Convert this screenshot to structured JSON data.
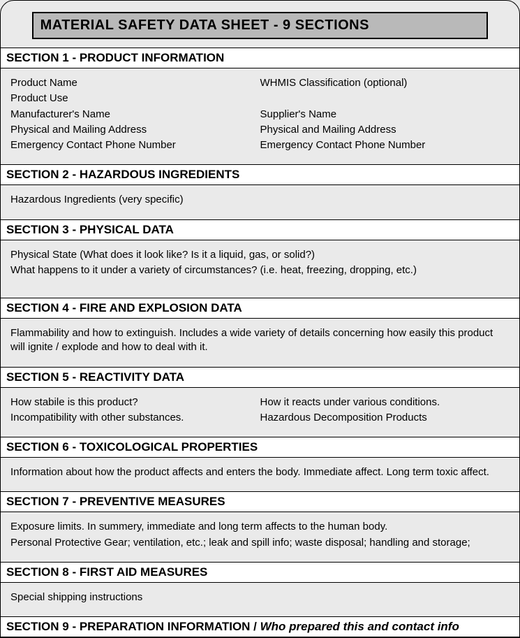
{
  "colors": {
    "page_bg": "#eaeaea",
    "title_bg": "#b9b9b9",
    "header_bg": "#ffffff",
    "border": "#000000",
    "text": "#000000"
  },
  "typography": {
    "title_fontsize": 20,
    "header_fontsize": 17,
    "body_fontsize": 15,
    "font_family": "Helvetica, Arial, sans-serif"
  },
  "title": "MATERIAL SAFETY DATA SHEET - 9 SECTIONS",
  "sections": {
    "s1": {
      "header": "SECTION 1 - PRODUCT INFORMATION",
      "left": {
        "l0": "Product Name",
        "l1": "Product Use",
        "l2": "Manufacturer's Name",
        "l3": "Physical and Mailing Address",
        "l4": "Emergency Contact Phone Number"
      },
      "right": {
        "r0": "WHMIS Classification (optional)",
        "r1": " ",
        "r2": "Supplier's Name",
        "r3": "Physical and Mailing Address",
        "r4": "Emergency Contact Phone Number"
      }
    },
    "s2": {
      "header": "SECTION 2 - HAZARDOUS INGREDIENTS",
      "body": "Hazardous Ingredients (very specific)"
    },
    "s3": {
      "header": "SECTION 3 - PHYSICAL DATA",
      "line1": "Physical State (What does it look like?  Is it a liquid, gas, or solid?)",
      "line2": "What happens to it under a variety of circumstances?  (i.e. heat, freezing, dropping, etc.)"
    },
    "s4": {
      "header": "SECTION 4 - FIRE AND EXPLOSION DATA",
      "body": "Flammability and how to extinguish.  Includes a wide variety of details concerning how easily this product will ignite / explode and how to deal with it."
    },
    "s5": {
      "header": "SECTION 5 - REACTIVITY DATA",
      "left": {
        "l0": "How stabile is this product?",
        "l1": "Incompatibility with other substances."
      },
      "right": {
        "r0": "How it reacts under various conditions.",
        "r1": "Hazardous Decomposition Products"
      }
    },
    "s6": {
      "header": "SECTION 6 - TOXICOLOGICAL PROPERTIES",
      "body": "Information about how the product affects and enters the body.  Immediate affect.  Long term toxic affect."
    },
    "s7": {
      "header": "SECTION 7 - PREVENTIVE MEASURES",
      "line1": "Exposure limits.  In summery, immediate and long term affects to the human body.",
      "line2": "Personal Protective Gear; ventilation, etc.; leak and spill info; waste disposal; handling and storage;"
    },
    "s8": {
      "header": "SECTION 8 - FIRST AID MEASURES",
      "body": "Special shipping instructions"
    },
    "s9": {
      "header_plain": "SECTION 9 - PREPARATION INFORMATION ",
      "header_sep": " / ",
      "header_italic": "Who prepared this and contact info"
    }
  }
}
